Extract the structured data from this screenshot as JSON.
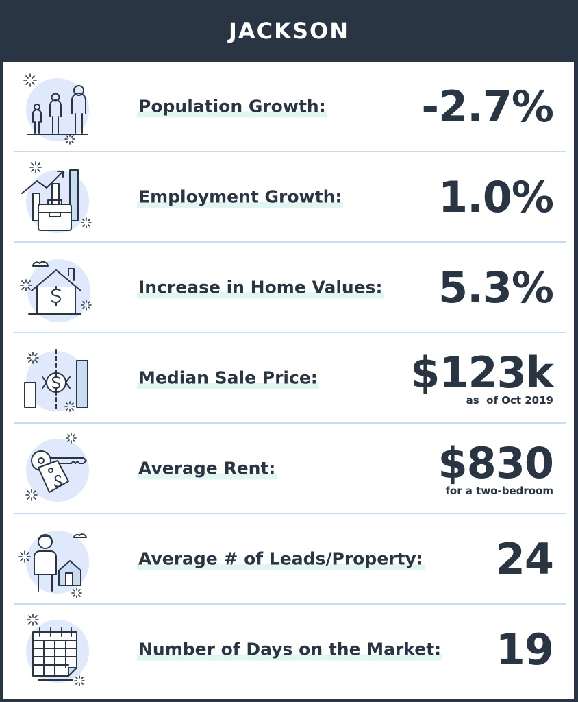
{
  "header": {
    "title": "JACKSON"
  },
  "colors": {
    "dark": "#2a3544",
    "accent_light": "#e1f6f1",
    "icon_fill": "#dfe9fb",
    "divider": "#c9dcf2"
  },
  "rows": [
    {
      "icon": "people-icon",
      "label": "Population Growth:",
      "value": "-2.7%",
      "note": ""
    },
    {
      "icon": "briefcase-chart-icon",
      "label": "Employment Growth:",
      "value": "1.0%",
      "note": ""
    },
    {
      "icon": "house-dollar-icon",
      "label": "Increase in Home Values:",
      "value": "5.3%",
      "note": ""
    },
    {
      "icon": "price-exchange-icon",
      "label": "Median Sale Price:",
      "value": "$123k",
      "note": "as  of Oct 2019"
    },
    {
      "icon": "key-tag-icon",
      "label": "Average Rent:",
      "value": "$830",
      "note": "for a two-bedroom"
    },
    {
      "icon": "person-house-icon",
      "label": "Average # of Leads/Property:",
      "value": "24",
      "note": ""
    },
    {
      "icon": "calendar-icon",
      "label": "Number of Days on the Market:",
      "value": "19",
      "note": ""
    }
  ]
}
